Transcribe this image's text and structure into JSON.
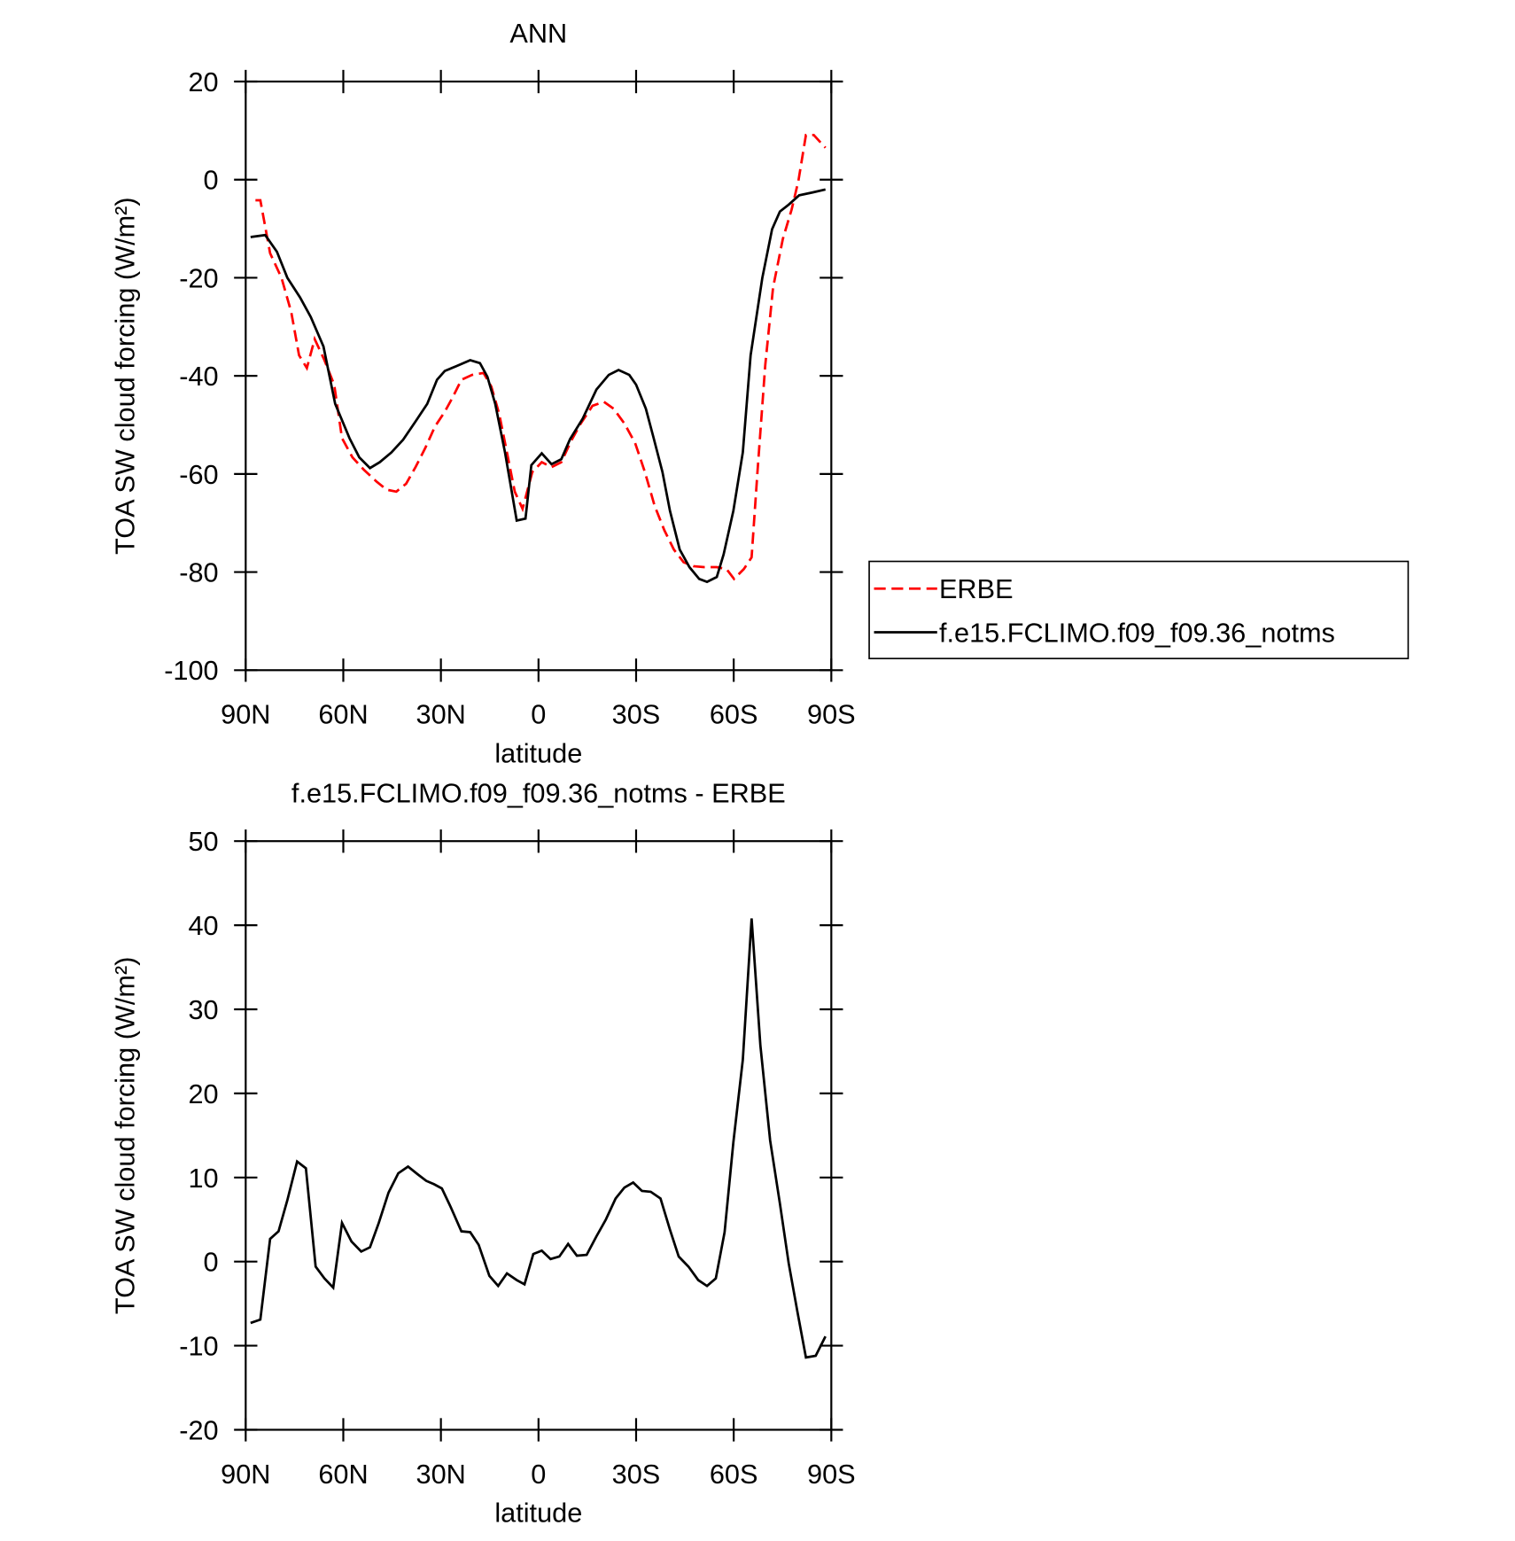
{
  "chart_data": [
    {
      "type": "line",
      "title": "ANN",
      "xlabel": "latitude",
      "ylabel": "TOA SW cloud forcing (W/m²)",
      "xlim": [
        90,
        -90
      ],
      "xticks": [
        {
          "value": 90,
          "label": "90N"
        },
        {
          "value": 60,
          "label": "60N"
        },
        {
          "value": 30,
          "label": "30N"
        },
        0,
        {
          "value": -30,
          "label": "30S"
        },
        {
          "value": -60,
          "label": "60S"
        },
        {
          "value": -90,
          "label": "90S"
        }
      ],
      "ylim": [
        -100,
        20
      ],
      "yticks": [
        -100,
        -80,
        -60,
        -40,
        -20,
        0,
        20
      ],
      "legend": "right",
      "series": [
        {
          "name": "ERBE",
          "color": "#ff0000",
          "linestyle": "dashed",
          "x": [
            87,
            85.5,
            82.5,
            79,
            76,
            73.6,
            71.2,
            68.8,
            65.8,
            62.8,
            60.4,
            57.2,
            53.6,
            49.7,
            46.7,
            43.7,
            40.7,
            37.8,
            34.8,
            31.8,
            28.8,
            26.4,
            23.7,
            20.4,
            16.9,
            14.5,
            12.1,
            9.7,
            7.3,
            4.9,
            1.9,
            -1,
            -4,
            -7,
            -10,
            -13,
            -16.6,
            -20.1,
            -23.1,
            -26.4,
            -29.7,
            -32.7,
            -35.7,
            -38.7,
            -41.6,
            -44.6,
            -47.6,
            -50.9,
            -54.8,
            -57.8,
            -60.1,
            -63.1,
            -65.5,
            -67.3,
            -69.7,
            -72.1,
            -75.1,
            -77.8,
            -79.9,
            -82.2,
            -84.6,
            -88.2
          ],
          "values": [
            -4.2,
            -4.2,
            -15,
            -20,
            -27,
            -35.8,
            -38.4,
            -32.5,
            -36.8,
            -41.8,
            -52.7,
            -56.6,
            -59.2,
            -61.6,
            -63.2,
            -63.6,
            -62,
            -58.6,
            -54.7,
            -50.3,
            -47.3,
            -44.4,
            -40.8,
            -39.8,
            -39.4,
            -42.2,
            -47.7,
            -55.6,
            -63.6,
            -67.1,
            -59.6,
            -57.6,
            -58.6,
            -57.6,
            -53.3,
            -49.7,
            -46.1,
            -45.3,
            -46.7,
            -49.7,
            -53.7,
            -59.6,
            -66.5,
            -71.5,
            -75.4,
            -78,
            -78.8,
            -79,
            -79,
            -79.4,
            -81.4,
            -79.4,
            -77,
            -59.6,
            -37.8,
            -22,
            -12.1,
            -6.1,
            -0.2,
            9.1,
            9.1,
            6.5
          ]
        },
        {
          "name": "f.e15.FCLIMO.f09_f09.36_notms",
          "color": "#000000",
          "linestyle": "solid",
          "x": [
            88.5,
            84,
            80.4,
            77.2,
            73.3,
            70,
            66.1,
            62.5,
            58.1,
            55.1,
            51.8,
            48.8,
            45.2,
            41.6,
            37.8,
            34.2,
            31.2,
            28.8,
            25.2,
            21,
            18,
            15.7,
            13.3,
            10.3,
            6.7,
            4,
            2.2,
            -1,
            -4,
            -7,
            -9.7,
            -13.6,
            -17.8,
            -21.6,
            -24.6,
            -27.9,
            -30,
            -33,
            -35.4,
            -38.1,
            -40.4,
            -43.4,
            -46.4,
            -49.4,
            -51.8,
            -54.8,
            -56.9,
            -59.9,
            -62.8,
            -65.2,
            -68.8,
            -71.8,
            -74.2,
            -76.9,
            -80.1,
            -84.3,
            -88.2
          ],
          "values": [
            -11.7,
            -11.3,
            -14.7,
            -20,
            -24,
            -28,
            -34,
            -45.7,
            -52.7,
            -56.6,
            -58.8,
            -57.6,
            -55.6,
            -53,
            -49.3,
            -45.7,
            -40.8,
            -39,
            -38,
            -36.8,
            -37.4,
            -40.2,
            -45.7,
            -55.6,
            -69.5,
            -69.1,
            -58.2,
            -55.8,
            -58,
            -57,
            -52.9,
            -48.7,
            -42.8,
            -39.8,
            -38.8,
            -39.8,
            -41.8,
            -46.7,
            -52.7,
            -59.6,
            -67.5,
            -75.4,
            -79,
            -81.4,
            -82,
            -81,
            -76.4,
            -67.5,
            -55.6,
            -35.8,
            -20,
            -10.1,
            -6.5,
            -5.1,
            -3.2,
            -2.6,
            -2
          ]
        }
      ]
    },
    {
      "type": "line",
      "title": "f.e15.FCLIMO.f09_f09.36_notms - ERBE",
      "xlabel": "latitude",
      "ylabel": "TOA SW cloud forcing (W/m²)",
      "xlim": [
        90,
        -90
      ],
      "xticks": [
        {
          "value": 90,
          "label": "90N"
        },
        {
          "value": 60,
          "label": "60N"
        },
        {
          "value": 30,
          "label": "30N"
        },
        0,
        {
          "value": -30,
          "label": "30S"
        },
        {
          "value": -60,
          "label": "60S"
        },
        {
          "value": -90,
          "label": "90S"
        }
      ],
      "ylim": [
        -20,
        50
      ],
      "yticks": [
        -20,
        -10,
        0,
        10,
        20,
        30,
        40,
        50
      ],
      "series": [
        {
          "color": "#000000",
          "linestyle": "solid",
          "x": [
            88.5,
            85.5,
            82.5,
            79.9,
            77.2,
            74.2,
            71.5,
            68.5,
            65.8,
            63.1,
            60.4,
            57.5,
            54.5,
            51.8,
            49.1,
            46.1,
            43.1,
            40.1,
            37.2,
            34.5,
            32.1,
            29.7,
            27,
            23.7,
            21,
            18.4,
            15.1,
            12.4,
            9.7,
            6.7,
            4.3,
            1.6,
            -1,
            -3.7,
            -6.4,
            -9.1,
            -11.8,
            -14.8,
            -17.8,
            -20.7,
            -23.7,
            -26.4,
            -29.1,
            -31.8,
            -34.5,
            -37.5,
            -40.4,
            -43.1,
            -46.1,
            -49.1,
            -51.8,
            -54.5,
            -57.2,
            -59.9,
            -62.8,
            -65.5,
            -68.2,
            -71.2,
            -74.2,
            -76.9,
            -79.6,
            -82.2,
            -85.2,
            -88.2
          ],
          "values": [
            -7.3,
            -6.9,
            2.7,
            3.6,
            7.3,
            11.9,
            11.1,
            -0.6,
            -2,
            -3.1,
            4.6,
            2.4,
            1.2,
            1.7,
            4.6,
            8.2,
            10.5,
            11.3,
            10.4,
            9.6,
            9.2,
            8.7,
            6.5,
            3.6,
            3.5,
            2,
            -1.7,
            -2.9,
            -1.4,
            -2.2,
            -2.7,
            0.9,
            1.3,
            0.3,
            0.6,
            2.1,
            0.7,
            0.8,
            3,
            5,
            7.5,
            8.8,
            9.4,
            8.4,
            8.3,
            7.5,
            3.8,
            0.6,
            -0.6,
            -2.2,
            -2.9,
            -2,
            3.5,
            14.2,
            24,
            40.8,
            25.7,
            14.4,
            6.9,
            -0.2,
            -6,
            -11.4,
            -11.2,
            -8.9
          ]
        }
      ]
    }
  ]
}
